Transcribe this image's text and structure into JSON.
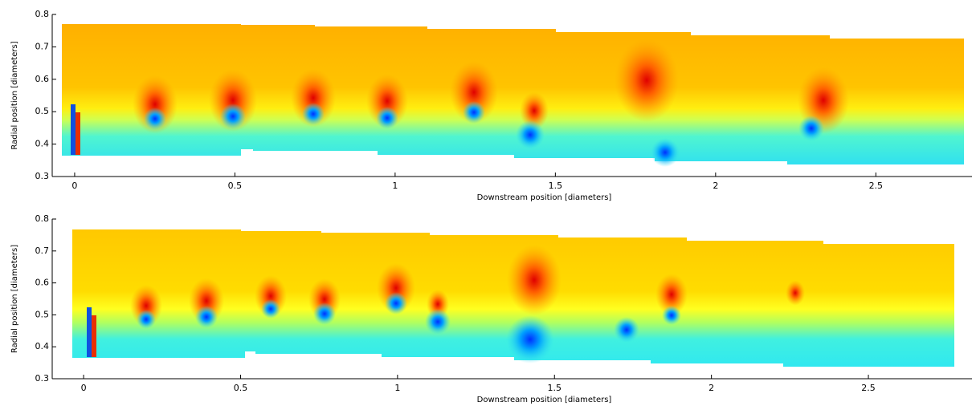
{
  "chart_data": [
    {
      "type": "contour",
      "x_label": "Downstream position [diameters]",
      "y_label": "Radial position [diameters]",
      "xlim": [
        -0.07,
        2.8
      ],
      "ylim": [
        0.3,
        0.8
      ],
      "xticks": [
        0,
        0.5,
        1,
        1.5,
        2,
        2.5
      ],
      "yticks": [
        0.3,
        0.4,
        0.5,
        0.6,
        0.7,
        0.8
      ]
    },
    {
      "type": "contour",
      "x_label": "Downstream position [diameters]",
      "y_label": "Radial position [diameters]",
      "xlim": [
        -0.1,
        2.83
      ],
      "ylim": [
        0.3,
        0.8
      ],
      "xticks": [
        0,
        0.5,
        1,
        1.5,
        2,
        2.5
      ],
      "yticks": [
        0.3,
        0.4,
        0.5,
        0.6,
        0.7,
        0.8
      ]
    }
  ]
}
